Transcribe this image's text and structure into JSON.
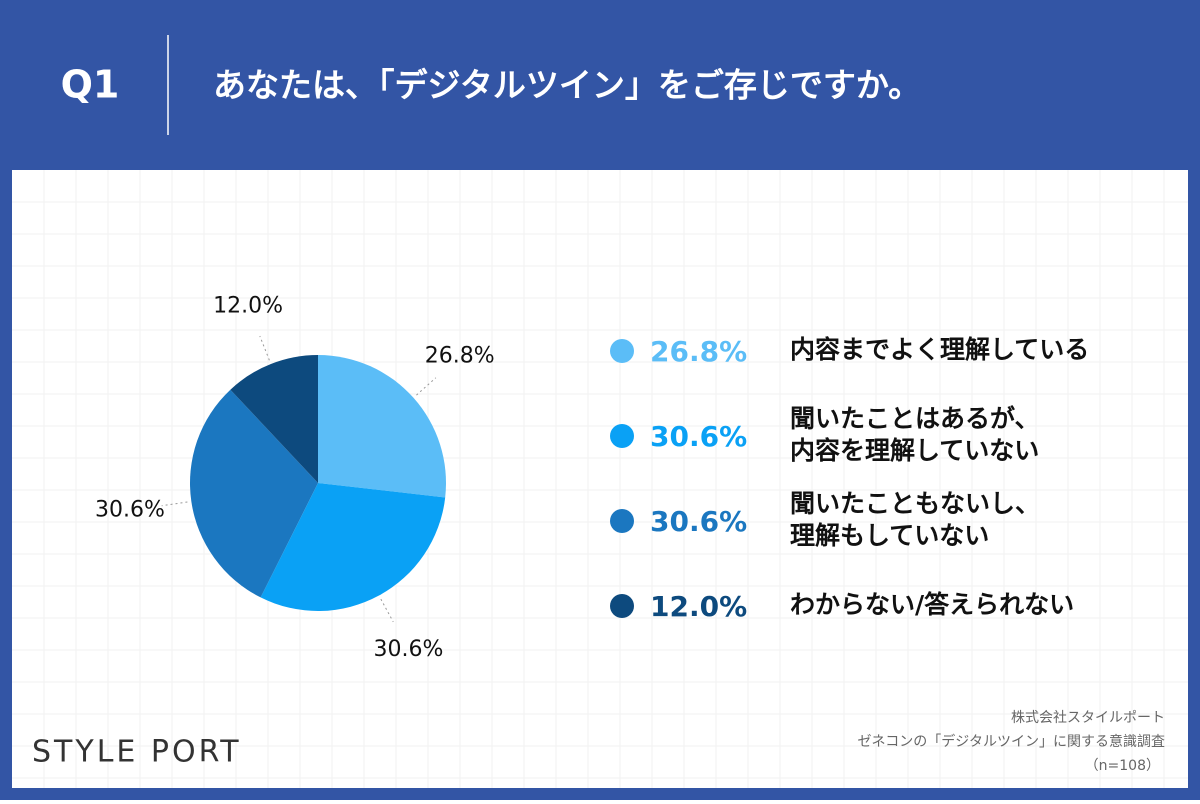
{
  "chart_data": {
    "type": "pie",
    "question": "Q1",
    "title": "あなたは、「デジタルツイン」をご存じですか。",
    "categories": [
      "内容までよく理解している",
      "聞いたことはあるが、\n内容を理解していない",
      "聞いたこともないし、\n理解もしていない",
      "わからない/答えられない"
    ],
    "values": [
      26.8,
      30.6,
      30.6,
      12.0
    ],
    "value_labels": [
      "26.8%",
      "30.6%",
      "30.6%",
      "12.0%"
    ],
    "colors": [
      "#5bbdf7",
      "#0aa1f5",
      "#1b77c0",
      "#0d4a7e"
    ],
    "legend": "right",
    "brand": "STYLE PORT",
    "source": [
      "株式会社スタイルポート",
      "ゼネコンの「デジタルツイン」に関する意識調査",
      "（n=108）"
    ]
  }
}
